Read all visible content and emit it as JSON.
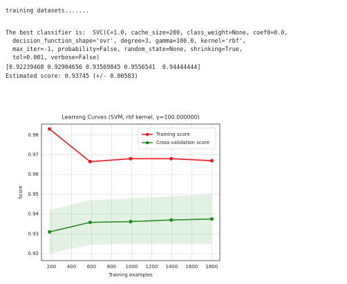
{
  "output_lines": [
    "training datasets.......",
    "The best classifier is:  SVC(C=1.0, cache_size=200, class_weight=None, coef0=0.0,",
    "  decision_function_shape='ovr', degree=3, gamma=100.0, kernel='rbf',",
    "  max_iter=-1, probability=False, random_state=None, shrinking=True,",
    "  tol=0.001, verbose=False)",
    "[0.92239468 0.92904656 0.93569845 0.9556541  0.94444444]",
    "Estimated score: 0.93745 (+/- 0.00583)"
  ],
  "chart_data": {
    "type": "line",
    "title": "Learning Curves (SVM, rbf kernel, γ=100.000000)",
    "x_label": "Training examples",
    "y_label": "Score",
    "x": [
      180,
      585,
      990,
      1395,
      1800
    ],
    "series": [
      {
        "name": "Training score",
        "color": "#e8151b",
        "values": [
          0.983,
          0.9665,
          0.968,
          0.968,
          0.967
        ],
        "lower": [
          0.9825,
          0.966,
          0.9675,
          0.9675,
          0.9665
        ],
        "upper": [
          0.9835,
          0.967,
          0.9685,
          0.9685,
          0.9675
        ]
      },
      {
        "name": "Cross-validation score",
        "color": "#1a8a1a",
        "values": [
          0.931,
          0.9358,
          0.9362,
          0.937,
          0.9375
        ],
        "lower": [
          0.92,
          0.9245,
          0.925,
          0.925,
          0.925
        ],
        "upper": [
          0.942,
          0.947,
          0.948,
          0.949,
          0.95
        ]
      }
    ],
    "xlim": [
      100,
      1880
    ],
    "xticks": [
      200,
      400,
      600,
      800,
      1000,
      1200,
      1400,
      1600,
      1800
    ],
    "ylim": [
      0.9165,
      0.9855
    ],
    "yticks": [
      0.92,
      0.93,
      0.94,
      0.95,
      0.96,
      0.97,
      0.98
    ],
    "grid": true,
    "legend": "upper right"
  }
}
